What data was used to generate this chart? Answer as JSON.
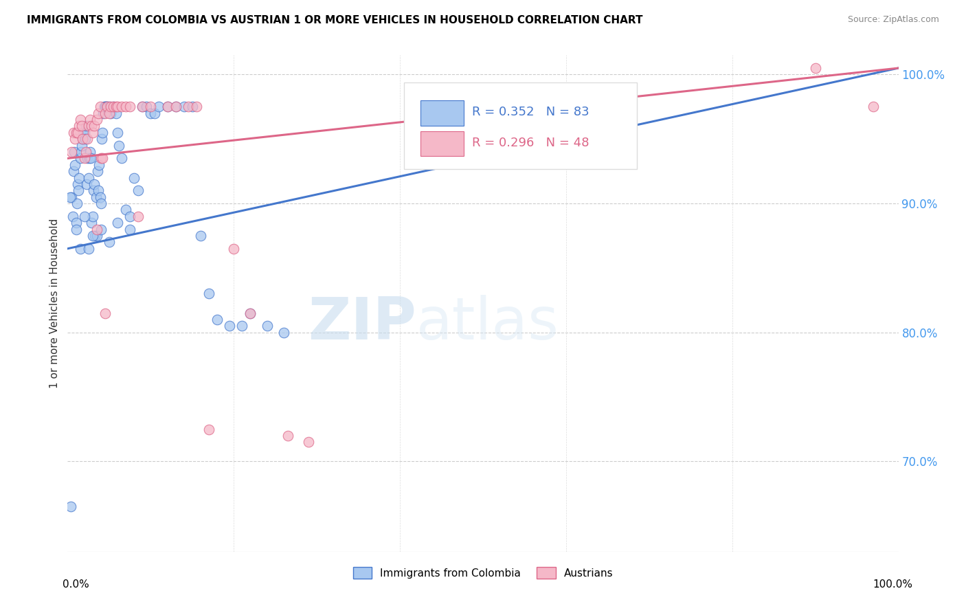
{
  "title": "IMMIGRANTS FROM COLOMBIA VS AUSTRIAN 1 OR MORE VEHICLES IN HOUSEHOLD CORRELATION CHART",
  "source": "Source: ZipAtlas.com",
  "ylabel": "1 or more Vehicles in Household",
  "legend_label1": "Immigrants from Colombia",
  "legend_label2": "Austrians",
  "R1": 0.352,
  "N1": 83,
  "R2": 0.296,
  "N2": 48,
  "color_blue": "#A8C8F0",
  "color_pink": "#F5B8C8",
  "color_blue_line": "#4477CC",
  "color_pink_line": "#DD6688",
  "watermark_zip": "ZIP",
  "watermark_atlas": "atlas",
  "xmin": 0.0,
  "xmax": 100.0,
  "ymin": 63.0,
  "ymax": 101.5,
  "ytick_values": [
    70.0,
    80.0,
    90.0,
    100.0
  ],
  "blue_line_x": [
    0.0,
    100.0
  ],
  "blue_line_y": [
    86.5,
    100.5
  ],
  "pink_line_x": [
    0.0,
    100.0
  ],
  "pink_line_y": [
    93.5,
    100.5
  ],
  "colombia_x": [
    0.4,
    0.5,
    0.6,
    0.7,
    0.8,
    0.9,
    1.0,
    1.1,
    1.2,
    1.3,
    1.4,
    1.5,
    1.6,
    1.7,
    1.8,
    1.9,
    2.0,
    2.1,
    2.2,
    2.3,
    2.4,
    2.5,
    2.6,
    2.7,
    2.8,
    2.9,
    3.0,
    3.1,
    3.2,
    3.3,
    3.4,
    3.5,
    3.6,
    3.7,
    3.8,
    3.9,
    4.0,
    4.1,
    4.2,
    4.3,
    4.4,
    4.5,
    4.6,
    4.7,
    4.8,
    5.0,
    5.2,
    5.5,
    5.8,
    6.0,
    6.2,
    6.5,
    7.0,
    7.5,
    8.0,
    8.5,
    9.0,
    9.5,
    10.0,
    10.5,
    11.0,
    12.0,
    13.0,
    14.0,
    15.0,
    16.0,
    17.0,
    18.0,
    19.5,
    21.0,
    22.0,
    24.0,
    26.0,
    0.3,
    1.0,
    1.5,
    2.0,
    2.5,
    3.0,
    4.0,
    5.0,
    6.0,
    7.5
  ],
  "colombia_y": [
    66.5,
    90.5,
    89.0,
    92.5,
    94.0,
    93.0,
    88.5,
    90.0,
    91.5,
    91.0,
    92.0,
    93.5,
    94.0,
    94.5,
    95.0,
    95.5,
    95.5,
    95.0,
    96.0,
    91.5,
    93.5,
    92.0,
    93.5,
    94.0,
    93.5,
    88.5,
    89.0,
    91.0,
    91.5,
    87.5,
    90.5,
    87.5,
    92.5,
    91.0,
    93.0,
    90.5,
    90.0,
    95.0,
    95.5,
    97.0,
    97.5,
    97.5,
    97.5,
    97.5,
    97.5,
    97.5,
    97.0,
    97.5,
    97.0,
    95.5,
    94.5,
    93.5,
    89.5,
    89.0,
    92.0,
    91.0,
    97.5,
    97.5,
    97.0,
    97.0,
    97.5,
    97.5,
    97.5,
    97.5,
    97.5,
    87.5,
    83.0,
    81.0,
    80.5,
    80.5,
    81.5,
    80.5,
    80.0,
    90.5,
    88.0,
    86.5,
    89.0,
    86.5,
    87.5,
    88.0,
    87.0,
    88.5,
    88.0
  ],
  "austrians_x": [
    0.5,
    0.7,
    0.9,
    1.0,
    1.2,
    1.4,
    1.5,
    1.7,
    1.8,
    2.0,
    2.2,
    2.4,
    2.5,
    2.7,
    2.9,
    3.0,
    3.2,
    3.5,
    3.7,
    3.9,
    4.0,
    4.2,
    4.5,
    4.8,
    5.0,
    5.2,
    5.5,
    5.8,
    6.0,
    6.5,
    7.0,
    7.5,
    8.5,
    9.0,
    10.0,
    12.0,
    13.0,
    14.5,
    17.0,
    20.0,
    22.0,
    26.5,
    29.0,
    15.5,
    90.0,
    97.0,
    3.5,
    4.5
  ],
  "austrians_y": [
    94.0,
    95.5,
    95.0,
    95.5,
    95.5,
    96.0,
    96.5,
    96.0,
    95.0,
    93.5,
    94.0,
    95.0,
    96.0,
    96.5,
    96.0,
    95.5,
    96.0,
    96.5,
    97.0,
    97.5,
    93.5,
    93.5,
    97.0,
    97.5,
    97.0,
    97.5,
    97.5,
    97.5,
    97.5,
    97.5,
    97.5,
    97.5,
    89.0,
    97.5,
    97.5,
    97.5,
    97.5,
    97.5,
    72.5,
    86.5,
    81.5,
    72.0,
    71.5,
    97.5,
    100.5,
    97.5,
    88.0,
    81.5
  ]
}
